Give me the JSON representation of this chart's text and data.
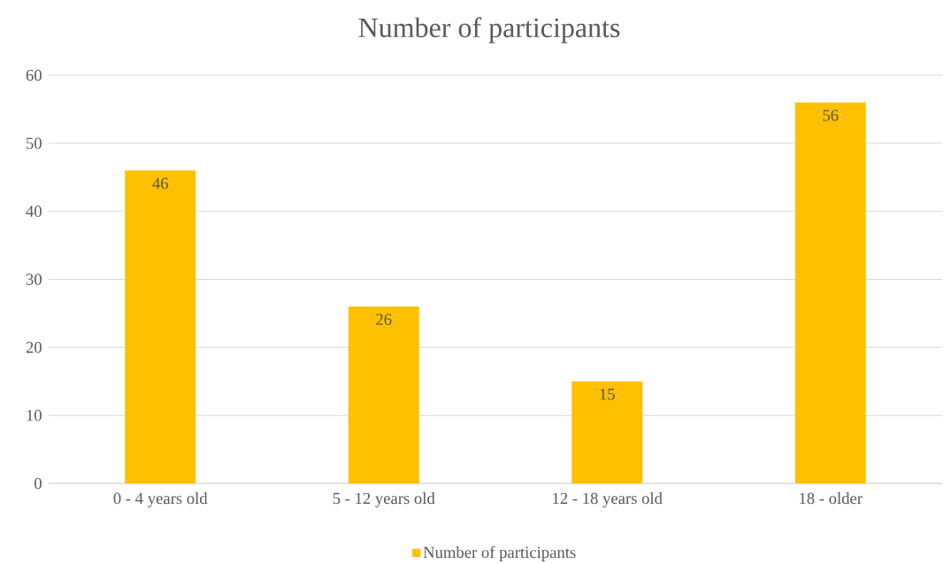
{
  "chart_data": {
    "type": "bar",
    "title": "Number of participants",
    "categories": [
      "0 - 4 years old",
      "5 - 12 years old",
      "12 - 18 years old",
      "18 - older"
    ],
    "series": [
      {
        "name": "Number of participants",
        "color": "#ffc000",
        "values": [
          46,
          26,
          15,
          56
        ]
      }
    ],
    "ylim": [
      0,
      60
    ],
    "yticks": [
      0,
      10,
      20,
      30,
      40,
      50,
      60
    ],
    "grid": "y",
    "legend": "bottom",
    "data_labels": true
  }
}
